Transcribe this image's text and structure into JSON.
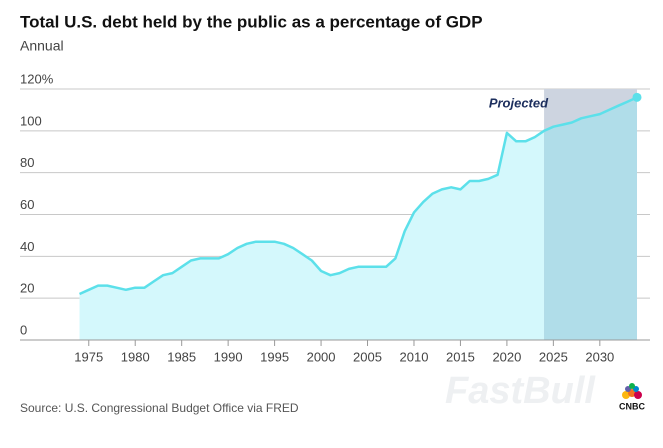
{
  "chart_data": {
    "type": "area",
    "title": "Total U.S. debt held by the public as a percentage of GDP",
    "subtitle": "Annual",
    "source": "Source: U.S. Congressional Budget Office via FRED",
    "watermark": "FastBull",
    "logo": "CNBC",
    "x": [
      1974,
      1975,
      1976,
      1977,
      1978,
      1979,
      1980,
      1981,
      1982,
      1983,
      1984,
      1985,
      1986,
      1987,
      1988,
      1989,
      1990,
      1991,
      1992,
      1993,
      1994,
      1995,
      1996,
      1997,
      1998,
      1999,
      2000,
      2001,
      2002,
      2003,
      2004,
      2005,
      2006,
      2007,
      2008,
      2009,
      2010,
      2011,
      2012,
      2013,
      2014,
      2015,
      2016,
      2017,
      2018,
      2019,
      2020,
      2021,
      2022,
      2023,
      2024,
      2025,
      2026,
      2027,
      2028,
      2029,
      2030,
      2031,
      2032,
      2033,
      2034
    ],
    "values": [
      22,
      24,
      26,
      26,
      25,
      24,
      25,
      25,
      28,
      31,
      32,
      35,
      38,
      39,
      39,
      39,
      41,
      44,
      46,
      47,
      47,
      47,
      46,
      44,
      41,
      38,
      33,
      31,
      32,
      34,
      35,
      35,
      35,
      35,
      39,
      52,
      61,
      66,
      70,
      72,
      73,
      72,
      76,
      76,
      77,
      79,
      99,
      95,
      95,
      97,
      100,
      102,
      103,
      104,
      106,
      107,
      108,
      110,
      112,
      114,
      116
    ],
    "color": "#5ce0ea",
    "fill": "#d4f8fc",
    "projection": {
      "label": "Projected",
      "from": 2024,
      "to": 2034,
      "color": "#cdd4e0",
      "fill": "#b0dde9"
    },
    "xlim": [
      1967.6,
      2035.4
    ],
    "xticks": [
      1975,
      1980,
      1985,
      1990,
      1995,
      2000,
      2005,
      2010,
      2015,
      2020,
      2025,
      2030
    ],
    "ylim": [
      0,
      120
    ],
    "yticks": [
      0,
      20,
      40,
      60,
      80,
      100,
      {
        "value": 120,
        "label": "120%"
      }
    ],
    "grid": true
  }
}
